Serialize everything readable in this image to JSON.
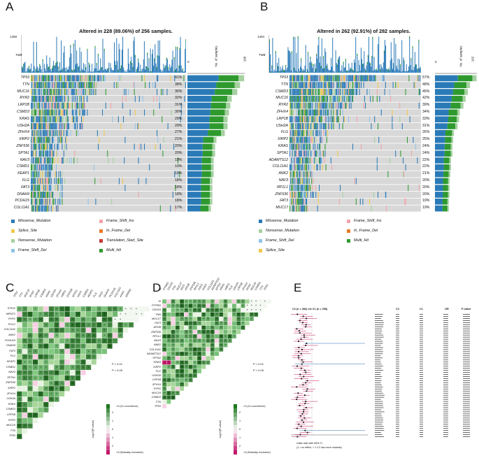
{
  "panels": [
    {
      "letter": "A",
      "title": "Altered in 228 (89.06%) of 256 samples.",
      "tmb_label": "TMB",
      "tmb_max": "1458",
      "side_label": "No. of samples",
      "side_ticks": [
        "0",
        "106"
      ],
      "genes": [
        "TP53",
        "TTN",
        "MUC16",
        "RYR2",
        "LRP1B",
        "CSMD3",
        "KRAS",
        "USH2A",
        "ZFHX4",
        "XIRP2",
        "ZNF536",
        "SPTA1",
        "NAV3",
        "CSMD1",
        "KEAP1",
        "FLG",
        "FAT3",
        "DNAH9",
        "PCDH15",
        "COL11A1"
      ],
      "pcts": [
        "41%",
        "38%",
        "36%",
        "32%",
        "31%",
        "30%",
        "29%",
        "29%",
        "27%",
        "21%",
        "20%",
        "20%",
        "19%",
        "19%",
        "19%",
        "18%",
        "18%",
        "18%",
        "18%",
        "17%"
      ],
      "legend": [
        {
          "label": "Missense_Mutation",
          "color": "#2a7ab8"
        },
        {
          "label": "Frame_Shift_Ins",
          "color": "#f2a3a8"
        },
        {
          "label": "Splice_Site",
          "color": "#f0c94a"
        },
        {
          "label": "In_Frame_Del",
          "color": "#e87b27"
        },
        {
          "label": "Nonsense_Mutation",
          "color": "#a5d0a0"
        },
        {
          "label": "Translation_Start_Site",
          "color": "#c73a3a"
        },
        {
          "label": "Frame_Shift_Del",
          "color": "#8fc3e8"
        },
        {
          "label": "Multi_Hit",
          "color": "#2e9a2e"
        }
      ]
    },
    {
      "letter": "B",
      "title": "Altered in 262 (92.91%) of 282 samples.",
      "tmb_label": "TMB",
      "tmb_max": "1404",
      "side_label": "No. of samples",
      "side_ticks": [
        "0",
        "162"
      ],
      "genes": [
        "TP53",
        "TTN",
        "CSMD3",
        "MUC16",
        "RYR2",
        "ZFHX4",
        "LRP1B",
        "USH2A",
        "FLG",
        "XIRP2",
        "KRAS",
        "SPTA1",
        "ADAMTS12",
        "COL11A1",
        "ANK2",
        "NAV3",
        "RP1L1",
        "ZNF536",
        "FAT3",
        "MUC17"
      ],
      "pcts": [
        "57%",
        "48%",
        "45%",
        "42%",
        "39%",
        "34%",
        "33%",
        "31%",
        "26%",
        "25%",
        "24%",
        "24%",
        "22%",
        "22%",
        "21%",
        "20%",
        "20%",
        "20%",
        "19%",
        "19%"
      ],
      "legend": [
        {
          "label": "Missense_Mutation",
          "color": "#2a7ab8"
        },
        {
          "label": "Frame_Shift_Ins",
          "color": "#f2a3a8"
        },
        {
          "label": "Nonsense_Mutation",
          "color": "#a5d0a0"
        },
        {
          "label": "In_Frame_Del",
          "color": "#e87b27"
        },
        {
          "label": "Frame_Shift_Del",
          "color": "#8fc3e8"
        },
        {
          "label": "Multi_Hit",
          "color": "#2e9a2e"
        },
        {
          "label": "Splice_Site",
          "color": "#f0c94a"
        }
      ]
    }
  ],
  "panel_c": {
    "letter": "C",
    "top_genes": [
      "TP53",
      "TTN",
      "MUC16",
      "RYR2",
      "LRP1B",
      "CSMD3",
      "KRAS",
      "USH2A",
      "ZFHX4",
      "XIRP2",
      "ZNF536",
      "SPTA1",
      "NAV3",
      "CSMD1",
      "KEAP1",
      "FLG",
      "FAT3",
      "DNAH9",
      "PCDH15",
      "COL11A1",
      "ANK2",
      "SRRM2"
    ],
    "left_genes": [
      "STK11",
      "MRNT1",
      "RYR1",
      "PCLO",
      "COL11A1",
      "ANK2",
      "PCDH15",
      "DNAH9",
      "FAT3",
      "FLG",
      "KEAP1",
      "CSMD1",
      "NAV3",
      "SPTA1",
      "ZNF536",
      "XIRP2",
      "ZFHX4",
      "USH2A",
      "KRAS",
      "CSMD3",
      "LRP1B",
      "RYR2",
      "MUC16",
      "TTN",
      "TP53"
    ],
    "sig1": "P < 0.01",
    "sig2": "P < 0.05",
    "cbar_top": ">3 (Co-occurence)",
    "cbar_bottom": ">3 (Mutually exclusive)",
    "cbar_title": "-log10(P-value)",
    "cbar_ticks": [
      "2",
      "1",
      "0",
      "1",
      "2"
    ]
  },
  "panel_d": {
    "letter": "D",
    "top_genes": [
      "SI",
      "PTPRD",
      "CDH10",
      "TNN",
      "MUC17",
      "FAT3",
      "APOB",
      "ZNF536",
      "RP1L1",
      "NAV3",
      "ANK2",
      "COL11A1",
      "ADAMTS12",
      "SPTA1",
      "KRAS",
      "XIRP2",
      "FLG",
      "USH2A",
      "LRP1B",
      "ZFHX4",
      "RYR2",
      "MUC16",
      "CSMD3",
      "TTN",
      "TP53"
    ],
    "left_genes": [
      "SI",
      "PTPRD",
      "CDH10",
      "TNN",
      "MUC17",
      "FAT3",
      "APOB",
      "ZNF536",
      "RP1L1",
      "NAV3",
      "ANK2",
      "COL11A1",
      "ADAMTS12",
      "SPTA1",
      "KRAS",
      "XIRP2",
      "FLG",
      "USH2A",
      "LRP1B",
      "ZFHX4",
      "RYR2",
      "MUC16",
      "CSMD3",
      "TTN",
      "TP53"
    ],
    "sig1": "P < 0.01",
    "sig2": "P < 0.05",
    "cbar_top": ">3 (Co-occurence)",
    "cbar_bottom": ">3 (Mutually exclusive)",
    "cbar_title": "-log10(P-value)",
    "cbar_ticks": [
      "2",
      "1",
      "0",
      "1",
      "2"
    ]
  },
  "panel_e": {
    "letter": "E",
    "header": "C2 (n = 282) v/s C1 (n = 256)",
    "col_c2": "C2",
    "col_c1": "C1",
    "col_or": "OR",
    "col_p": "P-value",
    "note_line1": "Odds ratio with 95% CI",
    "note_line2": "(1 = no effect, < 1 C2 has more mutants)"
  },
  "colors": {
    "missense": "#2a7ab8",
    "nonsense": "#a5d0a0",
    "multi_hit": "#2e9a2e",
    "frame_shift_del": "#8fc3e8",
    "frame_shift_ins": "#f2a3a8",
    "in_frame_del": "#e87b27",
    "splice_site": "#f0c94a",
    "grey_bg": "#d8d8d8",
    "co_occurrence": "#2e8b2e",
    "mutual_exclusive": "#c2186b"
  }
}
